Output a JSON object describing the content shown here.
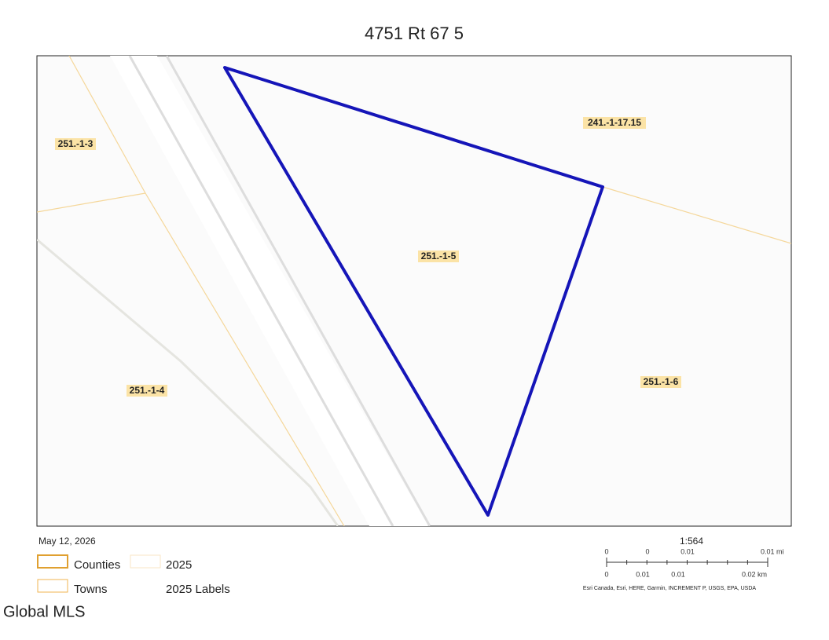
{
  "header": {
    "title": "4751 Rt 67 5"
  },
  "map": {
    "parcels": [
      "251.-1-3",
      "241.-1-17.15",
      "251.-1-5",
      "251.-1-4",
      "251.-1-6"
    ]
  },
  "footer": {
    "date": "May 12, 2026",
    "legend": [
      "Counties",
      "2025",
      "Towns",
      "2025 Labels"
    ],
    "scale": {
      "ratio": "1:564",
      "top": [
        "0",
        "0",
        "0.01",
        "0.01 mi"
      ],
      "bottom": [
        "0",
        "0.01",
        "0.01",
        "0.02 km"
      ]
    },
    "attribution": "Esri Canada, Esri, HERE, Garmin, INCREMENT P, USGS, EPA, USDA",
    "watermark": "Global MLS"
  }
}
